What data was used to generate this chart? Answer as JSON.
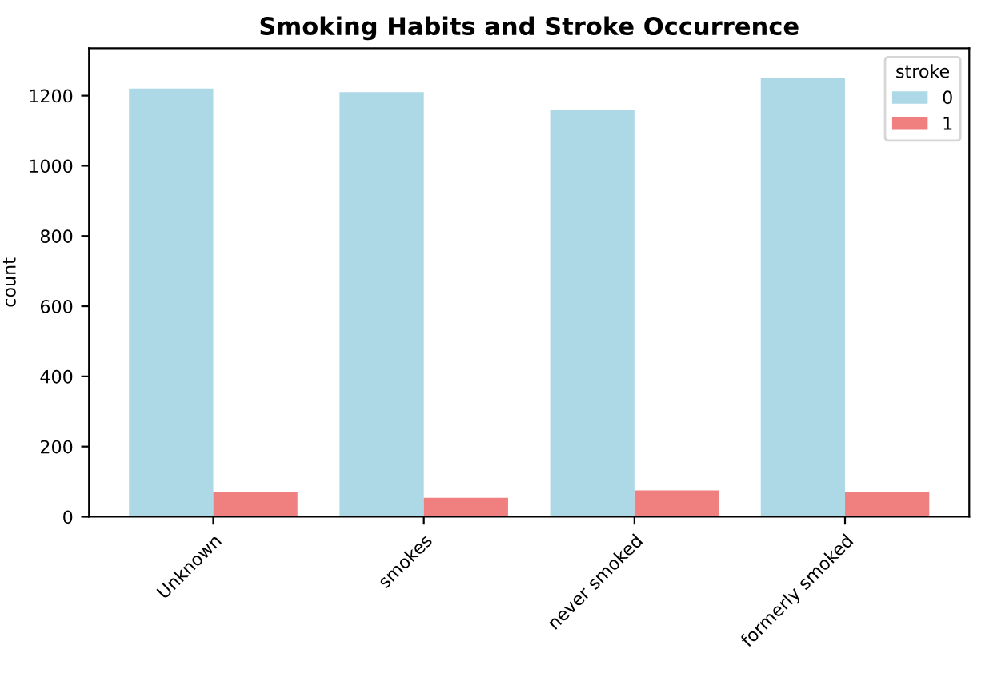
{
  "chart_data": {
    "type": "bar",
    "title": "Smoking Habits and Stroke Occurrence",
    "ylabel": "count",
    "legend_title": "stroke",
    "categories": [
      "Unknown",
      "smokes",
      "never smoked",
      "formerly smoked"
    ],
    "series": [
      {
        "name": "0",
        "color": "#add8e6",
        "values": [
          1220,
          1210,
          1160,
          1250
        ]
      },
      {
        "name": "1",
        "color": "#f08080",
        "values": [
          72,
          54,
          75,
          72
        ]
      }
    ],
    "ylim": [
      0,
      1335
    ],
    "yticks": [
      0,
      200,
      400,
      600,
      800,
      1000,
      1200
    ],
    "grid": false,
    "legend": "top right"
  }
}
